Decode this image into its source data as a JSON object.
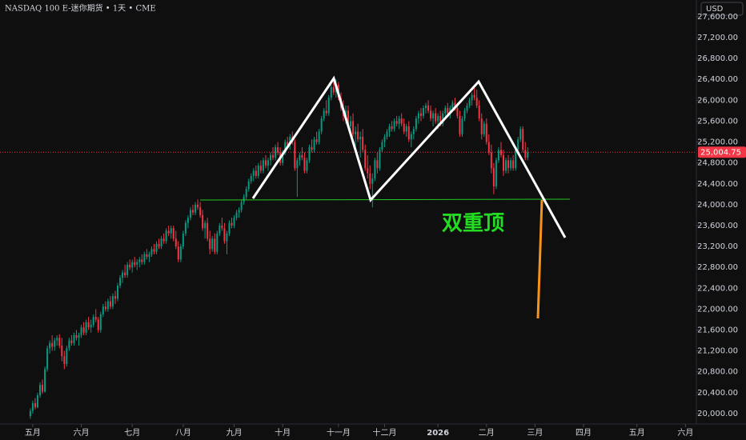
{
  "header": {
    "title": "NASDAQ 100 E-迷你期货 • 1天 • CME",
    "currency": "USD"
  },
  "annotation": "双重顶",
  "chart_data": {
    "type": "candlestick",
    "up_color": "#089981",
    "down_color": "#f23645",
    "last_price": {
      "value": 25004.75,
      "label": "25,004.75"
    },
    "xlim": [
      -12.5,
      274.5
    ],
    "ylim": [
      19800,
      27920
    ],
    "xticks": [
      {
        "value": 1,
        "label": "五月"
      },
      {
        "value": 21,
        "label": "六月"
      },
      {
        "value": 42,
        "label": "七月"
      },
      {
        "value": 63,
        "label": "八月"
      },
      {
        "value": 84,
        "label": "九月"
      },
      {
        "value": 104,
        "label": "十月"
      },
      {
        "value": 127,
        "label": "十一月"
      },
      {
        "value": 146,
        "label": "十二月"
      },
      {
        "value": 168,
        "label": "2026"
      },
      {
        "value": 188,
        "label": "二月"
      },
      {
        "value": 208,
        "label": "三月"
      },
      {
        "value": 228,
        "label": "四月"
      },
      {
        "value": 250,
        "label": "五月"
      },
      {
        "value": 270,
        "label": "六月"
      }
    ],
    "yticks": [
      {
        "value": 20000,
        "label": "20,000.00"
      },
      {
        "value": 20400,
        "label": "20,400.00"
      },
      {
        "value": 20800,
        "label": "20,800.00"
      },
      {
        "value": 21200,
        "label": "21,200.00"
      },
      {
        "value": 21600,
        "label": "21,600.00"
      },
      {
        "value": 22000,
        "label": "22,000.00"
      },
      {
        "value": 22400,
        "label": "22,400.00"
      },
      {
        "value": 22800,
        "label": "22,800.00"
      },
      {
        "value": 23200,
        "label": "23,200.00"
      },
      {
        "value": 23600,
        "label": "23,600.00"
      },
      {
        "value": 24000,
        "label": "24,000.00"
      },
      {
        "value": 24400,
        "label": "24,400.00"
      },
      {
        "value": 24800,
        "label": "24,800.00"
      },
      {
        "value": 25200,
        "label": "25,200.00"
      },
      {
        "value": 25600,
        "label": "25,600.00"
      },
      {
        "value": 26000,
        "label": "26,000.00"
      },
      {
        "value": 26400,
        "label": "26,400.00"
      },
      {
        "value": 26800,
        "label": "26,800.00"
      },
      {
        "value": 27200,
        "label": "27,200.00"
      },
      {
        "value": 27600,
        "label": "27,600.00"
      }
    ],
    "candles": [
      [
        19950,
        20100,
        19900,
        20050
      ],
      [
        20050,
        20250,
        20000,
        20200
      ],
      [
        20200,
        20300,
        20080,
        20120
      ],
      [
        20120,
        20400,
        20100,
        20350
      ],
      [
        20350,
        20600,
        20300,
        20550
      ],
      [
        20550,
        20650,
        20380,
        20420
      ],
      [
        20420,
        20900,
        20400,
        20850
      ],
      [
        20850,
        21300,
        20800,
        21250
      ],
      [
        21250,
        21400,
        21150,
        21350
      ],
      [
        21350,
        21500,
        21200,
        21280
      ],
      [
        21280,
        21450,
        21200,
        21400
      ],
      [
        21400,
        21500,
        21300,
        21450
      ],
      [
        21450,
        21520,
        21250,
        21300
      ],
      [
        21300,
        21450,
        21000,
        21100
      ],
      [
        21100,
        21200,
        20850,
        20950
      ],
      [
        20950,
        21300,
        20900,
        21250
      ],
      [
        21250,
        21450,
        21200,
        21400
      ],
      [
        21400,
        21500,
        21300,
        21350
      ],
      [
        21350,
        21550,
        21300,
        21500
      ],
      [
        21500,
        21600,
        21400,
        21450
      ],
      [
        21450,
        21550,
        21300,
        21500
      ],
      [
        21500,
        21700,
        21450,
        21650
      ],
      [
        21650,
        21750,
        21500,
        21550
      ],
      [
        21550,
        21800,
        21500,
        21750
      ],
      [
        21750,
        21850,
        21600,
        21650
      ],
      [
        21650,
        21800,
        21550,
        21700
      ],
      [
        21700,
        21900,
        21650,
        21850
      ],
      [
        21850,
        22000,
        21750,
        21800
      ],
      [
        21800,
        21850,
        21550,
        21600
      ],
      [
        21600,
        21950,
        21550,
        21900
      ],
      [
        21900,
        22100,
        21850,
        22050
      ],
      [
        22050,
        22150,
        21950,
        22000
      ],
      [
        22000,
        22200,
        21950,
        22150
      ],
      [
        22150,
        22250,
        22000,
        22050
      ],
      [
        22050,
        22300,
        22000,
        22250
      ],
      [
        22250,
        22350,
        22100,
        22200
      ],
      [
        22200,
        22500,
        22150,
        22450
      ],
      [
        22450,
        22650,
        22400,
        22600
      ],
      [
        22600,
        22750,
        22500,
        22700
      ],
      [
        22700,
        22850,
        22600,
        22650
      ],
      [
        22650,
        22900,
        22600,
        22850
      ],
      [
        22850,
        22950,
        22750,
        22800
      ],
      [
        22800,
        22950,
        22700,
        22900
      ],
      [
        22900,
        23000,
        22800,
        22850
      ],
      [
        22850,
        22950,
        22750,
        22900
      ],
      [
        22900,
        23000,
        22800,
        22950
      ],
      [
        22950,
        23050,
        22850,
        22900
      ],
      [
        22900,
        23100,
        22850,
        23050
      ],
      [
        23050,
        23150,
        22950,
        23000
      ],
      [
        23000,
        23100,
        22900,
        23050
      ],
      [
        23050,
        23200,
        23000,
        23150
      ],
      [
        23150,
        23250,
        23050,
        23100
      ],
      [
        23100,
        23300,
        23050,
        23250
      ],
      [
        23250,
        23350,
        23150,
        23200
      ],
      [
        23200,
        23400,
        23150,
        23350
      ],
      [
        23350,
        23450,
        23250,
        23300
      ],
      [
        23300,
        23550,
        23250,
        23500
      ],
      [
        23500,
        23600,
        23400,
        23450
      ],
      [
        23450,
        23600,
        23350,
        23550
      ],
      [
        23550,
        23600,
        23300,
        23350
      ],
      [
        23350,
        23500,
        23150,
        23200
      ],
      [
        23200,
        23300,
        22900,
        22950
      ],
      [
        22950,
        23250,
        22900,
        23200
      ],
      [
        23200,
        23500,
        23150,
        23450
      ],
      [
        23450,
        23700,
        23400,
        23650
      ],
      [
        23650,
        23800,
        23550,
        23750
      ],
      [
        23750,
        23950,
        23700,
        23900
      ],
      [
        23900,
        24000,
        23800,
        23850
      ],
      [
        23850,
        24050,
        23800,
        24000
      ],
      [
        24000,
        24100,
        23900,
        23950
      ],
      [
        23950,
        24050,
        23750,
        23800
      ],
      [
        23800,
        23900,
        23500,
        23550
      ],
      [
        23550,
        23700,
        23350,
        23650
      ],
      [
        23650,
        23750,
        23300,
        23350
      ],
      [
        23350,
        23500,
        23050,
        23150
      ],
      [
        23150,
        23400,
        23100,
        23350
      ],
      [
        23350,
        23450,
        23050,
        23100
      ],
      [
        23100,
        23500,
        23050,
        23450
      ],
      [
        23450,
        23650,
        23400,
        23600
      ],
      [
        23600,
        23750,
        23500,
        23550
      ],
      [
        23550,
        23650,
        23250,
        23300
      ],
      [
        23300,
        23500,
        23050,
        23450
      ],
      [
        23450,
        23700,
        23400,
        23650
      ],
      [
        23650,
        23750,
        23550,
        23600
      ],
      [
        23600,
        23800,
        23550,
        23750
      ],
      [
        23750,
        23900,
        23700,
        23850
      ],
      [
        23850,
        23950,
        23750,
        23900
      ],
      [
        23900,
        24100,
        23850,
        24050
      ],
      [
        24050,
        24200,
        24000,
        24150
      ],
      [
        24150,
        24350,
        24100,
        24300
      ],
      [
        24300,
        24500,
        24250,
        24450
      ],
      [
        24450,
        24600,
        24400,
        24550
      ],
      [
        24550,
        24700,
        24450,
        24650
      ],
      [
        24650,
        24750,
        24500,
        24550
      ],
      [
        24550,
        24800,
        24500,
        24750
      ],
      [
        24750,
        24850,
        24600,
        24650
      ],
      [
        24650,
        24900,
        24600,
        24850
      ],
      [
        24850,
        24950,
        24700,
        24750
      ],
      [
        24750,
        24900,
        24650,
        24850
      ],
      [
        24850,
        25000,
        24750,
        24950
      ],
      [
        24950,
        25100,
        24850,
        24900
      ],
      [
        24900,
        25150,
        24850,
        25100
      ],
      [
        25100,
        25200,
        24950,
        25000
      ],
      [
        25000,
        25100,
        24750,
        24800
      ],
      [
        24800,
        25050,
        24750,
        25000
      ],
      [
        25000,
        25250,
        24950,
        25200
      ],
      [
        25200,
        25300,
        25100,
        25150
      ],
      [
        25150,
        25350,
        25050,
        25300
      ],
      [
        25300,
        25400,
        25150,
        25200
      ],
      [
        25200,
        25250,
        24650,
        24700
      ],
      [
        24700,
        24900,
        24150,
        24850
      ],
      [
        24850,
        25000,
        24750,
        24950
      ],
      [
        24950,
        25100,
        24850,
        24900
      ],
      [
        24900,
        25000,
        24600,
        24650
      ],
      [
        24650,
        24900,
        24600,
        24850
      ],
      [
        24850,
        25150,
        24800,
        25100
      ],
      [
        25100,
        25250,
        25000,
        25050
      ],
      [
        25050,
        25300,
        25000,
        25250
      ],
      [
        25250,
        25400,
        25150,
        25200
      ],
      [
        25200,
        25450,
        25150,
        25400
      ],
      [
        25400,
        25700,
        25350,
        25650
      ],
      [
        25650,
        25850,
        25600,
        25800
      ],
      [
        25800,
        26000,
        25700,
        25750
      ],
      [
        25750,
        26100,
        25700,
        26050
      ],
      [
        26050,
        26300,
        26000,
        26250
      ],
      [
        26250,
        26350,
        26100,
        26150
      ],
      [
        26150,
        26400,
        26050,
        26300
      ],
      [
        26300,
        26350,
        26000,
        26050
      ],
      [
        26050,
        26150,
        25800,
        25850
      ],
      [
        25850,
        26000,
        25600,
        25700
      ],
      [
        25700,
        25900,
        25550,
        25800
      ],
      [
        25800,
        25900,
        25450,
        25500
      ],
      [
        25500,
        25700,
        25400,
        25600
      ],
      [
        25600,
        25750,
        25300,
        25350
      ],
      [
        25350,
        25500,
        25100,
        25400
      ],
      [
        25400,
        25550,
        25200,
        25250
      ],
      [
        25250,
        25400,
        24900,
        25300
      ],
      [
        25300,
        25450,
        25000,
        25050
      ],
      [
        25050,
        25150,
        24650,
        24700
      ],
      [
        24700,
        24950,
        24500,
        24600
      ],
      [
        24600,
        24750,
        24300,
        24400
      ],
      [
        24400,
        24600,
        23950,
        24500
      ],
      [
        24500,
        24900,
        24450,
        24850
      ],
      [
        24850,
        25000,
        24600,
        24700
      ],
      [
        24700,
        25100,
        24650,
        25050
      ],
      [
        25050,
        25250,
        25000,
        25200
      ],
      [
        25200,
        25350,
        25100,
        25300
      ],
      [
        25300,
        25450,
        25250,
        25400
      ],
      [
        25400,
        25550,
        25300,
        25500
      ],
      [
        25500,
        25600,
        25400,
        25450
      ],
      [
        25450,
        25650,
        25400,
        25600
      ],
      [
        25600,
        25700,
        25500,
        25550
      ],
      [
        25550,
        25700,
        25450,
        25650
      ],
      [
        25650,
        25750,
        25500,
        25550
      ],
      [
        25550,
        25650,
        25350,
        25400
      ],
      [
        25400,
        25550,
        25300,
        25500
      ],
      [
        25500,
        25600,
        25200,
        25250
      ],
      [
        25250,
        25400,
        25100,
        25350
      ],
      [
        25350,
        25500,
        25250,
        25450
      ],
      [
        25450,
        25700,
        25400,
        25650
      ],
      [
        25650,
        25800,
        25550,
        25750
      ],
      [
        25750,
        25850,
        25600,
        25700
      ],
      [
        25700,
        25900,
        25650,
        25850
      ],
      [
        25850,
        25950,
        25750,
        25900
      ],
      [
        25900,
        26000,
        25750,
        25800
      ],
      [
        25800,
        25900,
        25600,
        25650
      ],
      [
        25650,
        25800,
        25500,
        25750
      ],
      [
        25750,
        25850,
        25550,
        25600
      ],
      [
        25600,
        25750,
        25450,
        25700
      ],
      [
        25700,
        25800,
        25500,
        25550
      ],
      [
        25550,
        25800,
        25500,
        25750
      ],
      [
        25750,
        25900,
        25700,
        25850
      ],
      [
        25850,
        25950,
        25700,
        25750
      ],
      [
        25750,
        25900,
        25650,
        25850
      ],
      [
        25850,
        26000,
        25800,
        25950
      ],
      [
        25950,
        26050,
        25800,
        25850
      ],
      [
        25850,
        25950,
        25650,
        25700
      ],
      [
        25700,
        25800,
        25300,
        25350
      ],
      [
        25350,
        25700,
        25300,
        25650
      ],
      [
        25650,
        25850,
        25600,
        25800
      ],
      [
        25800,
        25950,
        25750,
        25900
      ],
      [
        25900,
        26050,
        25850,
        26000
      ],
      [
        26000,
        26150,
        25900,
        26100
      ],
      [
        26100,
        26250,
        26000,
        26050
      ],
      [
        26050,
        26200,
        25850,
        25900
      ],
      [
        25900,
        26000,
        25600,
        25650
      ],
      [
        25650,
        25750,
        25250,
        25350
      ],
      [
        25350,
        25600,
        25300,
        25550
      ],
      [
        25550,
        25650,
        25150,
        25200
      ],
      [
        25200,
        25350,
        24950,
        25000
      ],
      [
        25000,
        25150,
        24600,
        24700
      ],
      [
        24700,
        24800,
        24200,
        24350
      ],
      [
        24350,
        24900,
        24300,
        24850
      ],
      [
        24850,
        25100,
        24800,
        25050
      ],
      [
        25050,
        25200,
        24900,
        24950
      ],
      [
        24950,
        25050,
        24550,
        24650
      ],
      [
        24650,
        24900,
        24600,
        24850
      ],
      [
        24850,
        24950,
        24600,
        24700
      ],
      [
        24700,
        24900,
        24650,
        24850
      ],
      [
        24850,
        24950,
        24650,
        24700
      ],
      [
        24700,
        25100,
        24650,
        25050
      ],
      [
        25050,
        25300,
        25000,
        25250
      ],
      [
        25250,
        25500,
        25200,
        25450
      ],
      [
        25450,
        25500,
        25000,
        25050
      ],
      [
        25050,
        25200,
        24850,
        24900
      ],
      [
        24900,
        25100,
        24850,
        25004.75
      ]
    ]
  }
}
